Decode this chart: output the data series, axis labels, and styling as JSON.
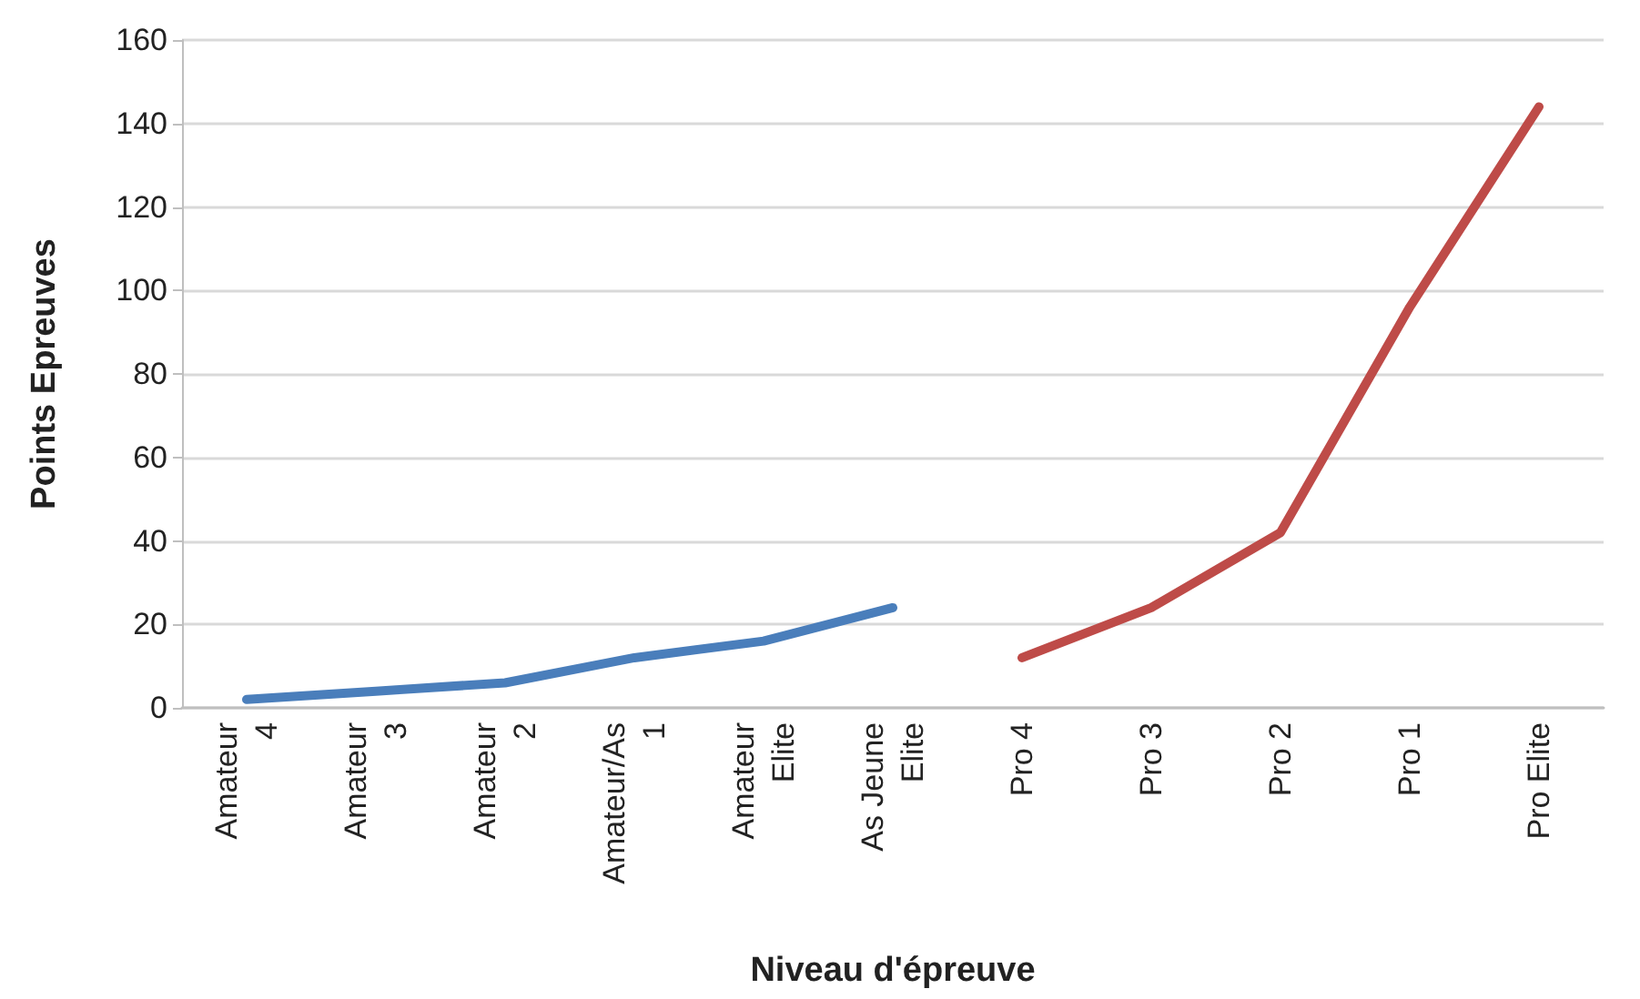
{
  "chart_data": {
    "type": "line",
    "xlabel": "Niveau d'épreuve",
    "ylabel": "Points Epreuves",
    "categories": [
      "Amateur 4",
      "Amateur 3",
      "Amateur 2",
      "Amateur/As 1",
      "Amateur Elite",
      "As Jeune Elite",
      "Pro 4",
      "Pro 3",
      "Pro 2",
      "Pro 1",
      "Pro Elite"
    ],
    "series": [
      {
        "color": "#4a7ebb",
        "values": [
          2,
          4,
          6,
          12,
          16,
          24,
          null,
          null,
          null,
          null,
          null
        ]
      },
      {
        "color": "#be4b48",
        "values": [
          null,
          null,
          null,
          null,
          null,
          null,
          12,
          24,
          42,
          96,
          144
        ]
      }
    ],
    "ylim": [
      0,
      160
    ],
    "yticks": [
      0,
      20,
      40,
      60,
      80,
      100,
      120,
      140,
      160
    ],
    "grid": "y",
    "marker": "none",
    "line_style": "solid"
  }
}
